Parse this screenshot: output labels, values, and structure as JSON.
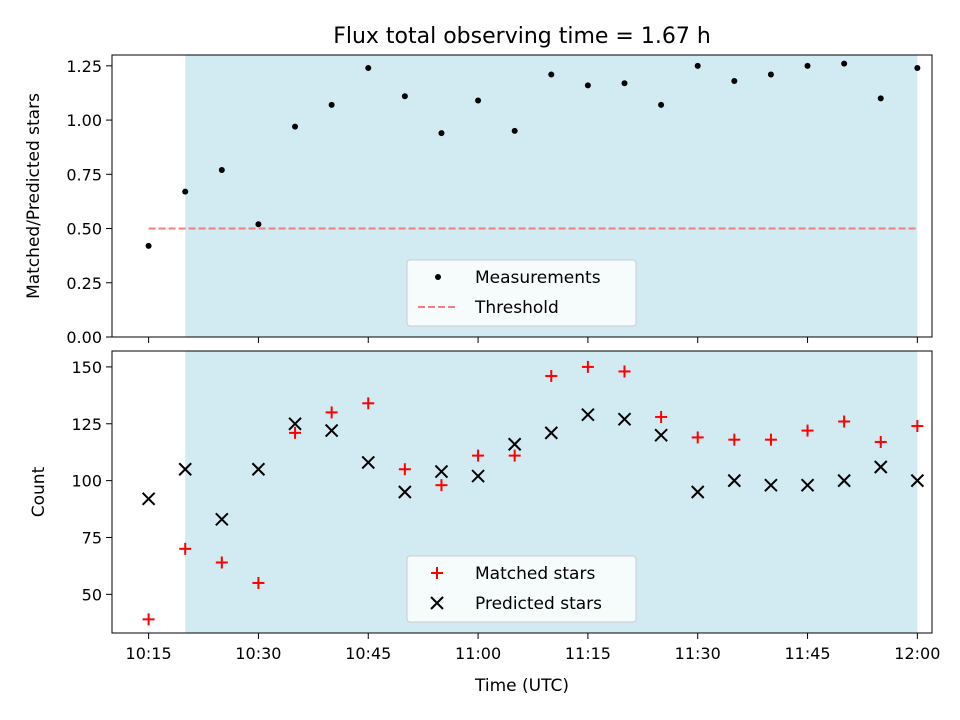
{
  "chart_data": [
    {
      "type": "scatter",
      "title": "Flux total observing time = 1.67 h",
      "ylabel": "Matched/Predicted stars",
      "xlabel": "",
      "xlim": [
        "10:10",
        "12:02"
      ],
      "ylim": [
        0,
        1.3
      ],
      "yticks": [
        "0.00",
        "0.25",
        "0.50",
        "0.75",
        "1.00",
        "1.25"
      ],
      "shaded_region": {
        "x_start": "10:20",
        "x_end": "12:00",
        "color": "#add8e6"
      },
      "series": [
        {
          "name": "Measurements",
          "marker": "dot",
          "color": "#000000",
          "x": [
            "10:15",
            "10:20",
            "10:25",
            "10:30",
            "10:35",
            "10:40",
            "10:45",
            "10:50",
            "10:55",
            "11:00",
            "11:05",
            "11:10",
            "11:15",
            "11:20",
            "11:25",
            "11:30",
            "11:35",
            "11:40",
            "11:45",
            "11:50",
            "11:55",
            "12:00"
          ],
          "values": [
            0.42,
            0.67,
            0.77,
            0.52,
            0.97,
            1.07,
            1.24,
            1.11,
            0.94,
            1.09,
            0.95,
            1.21,
            1.16,
            1.17,
            1.07,
            1.25,
            1.18,
            1.21,
            1.25,
            1.26,
            1.1,
            1.24
          ]
        },
        {
          "name": "Threshold",
          "marker": "dashed-line",
          "color": "#f08080",
          "x": [
            "10:15",
            "12:00"
          ],
          "values": [
            0.5,
            0.5
          ]
        }
      ],
      "legend": "lower-center"
    },
    {
      "type": "scatter",
      "title": "",
      "ylabel": "Count",
      "xlabel": "Time (UTC)",
      "xlim": [
        "10:10",
        "12:02"
      ],
      "ylim": [
        33,
        157
      ],
      "yticks": [
        "50",
        "75",
        "100",
        "125",
        "150"
      ],
      "xticks": [
        "10:15",
        "10:30",
        "10:45",
        "11:00",
        "11:15",
        "11:30",
        "11:45",
        "12:00"
      ],
      "shaded_region": {
        "x_start": "10:20",
        "x_end": "12:00",
        "color": "#add8e6"
      },
      "series": [
        {
          "name": "Matched stars",
          "marker": "plus",
          "color": "#ff0000",
          "x": [
            "10:15",
            "10:20",
            "10:25",
            "10:30",
            "10:35",
            "10:40",
            "10:45",
            "10:50",
            "10:55",
            "11:00",
            "11:05",
            "11:10",
            "11:15",
            "11:20",
            "11:25",
            "11:30",
            "11:35",
            "11:40",
            "11:45",
            "11:50",
            "11:55",
            "12:00"
          ],
          "values": [
            39,
            70,
            64,
            55,
            121,
            130,
            134,
            105,
            98,
            111,
            111,
            146,
            150,
            148,
            128,
            119,
            118,
            118,
            122,
            126,
            117,
            124
          ]
        },
        {
          "name": "Predicted stars",
          "marker": "x",
          "color": "#000000",
          "x": [
            "10:15",
            "10:20",
            "10:25",
            "10:30",
            "10:35",
            "10:40",
            "10:45",
            "10:50",
            "10:55",
            "11:00",
            "11:05",
            "11:10",
            "11:15",
            "11:20",
            "11:25",
            "11:30",
            "11:35",
            "11:40",
            "11:45",
            "11:50",
            "11:55",
            "12:00"
          ],
          "values": [
            92,
            105,
            83,
            105,
            125,
            122,
            108,
            95,
            104,
            102,
            116,
            121,
            129,
            127,
            120,
            95,
            100,
            98,
            98,
            100,
            106,
            100
          ]
        }
      ],
      "legend": "lower-center"
    }
  ]
}
